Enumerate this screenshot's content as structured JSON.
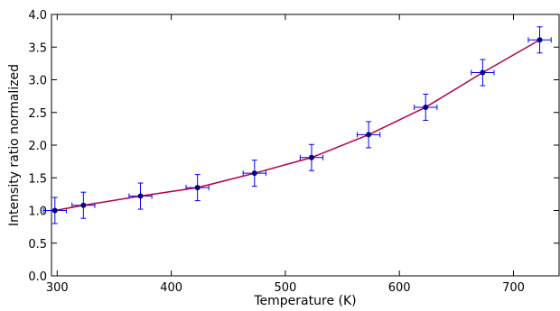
{
  "chart_data": {
    "type": "line",
    "title": "",
    "xlabel": "Temperature (K)",
    "ylabel": "Intensity ratio normalized",
    "xlim": [
      295,
      740
    ],
    "ylim": [
      0.0,
      4.0
    ],
    "xticks": [
      300,
      400,
      500,
      600,
      700
    ],
    "yticks": [
      0.0,
      0.5,
      1.0,
      1.5,
      2.0,
      2.5,
      3.0,
      3.5,
      4.0
    ],
    "xtick_labels": [
      "300",
      "400",
      "500",
      "600",
      "700"
    ],
    "ytick_labels": [
      "0.0",
      "0.5",
      "1.0",
      "1.5",
      "2.0",
      "2.5",
      "3.0",
      "3.5",
      "4.0"
    ],
    "grid": false,
    "legend": false,
    "series": [
      {
        "x": [
          298,
          323,
          373,
          423,
          473,
          523,
          573,
          623,
          673,
          723
        ],
        "y": [
          1.0,
          1.08,
          1.22,
          1.35,
          1.57,
          1.81,
          2.16,
          2.58,
          3.11,
          3.61
        ],
        "xerr": 10,
        "yerr": 0.2,
        "marker_color": "#000080",
        "errorbar_color": "#0000ff",
        "line_color": "#b0004c"
      }
    ]
  }
}
